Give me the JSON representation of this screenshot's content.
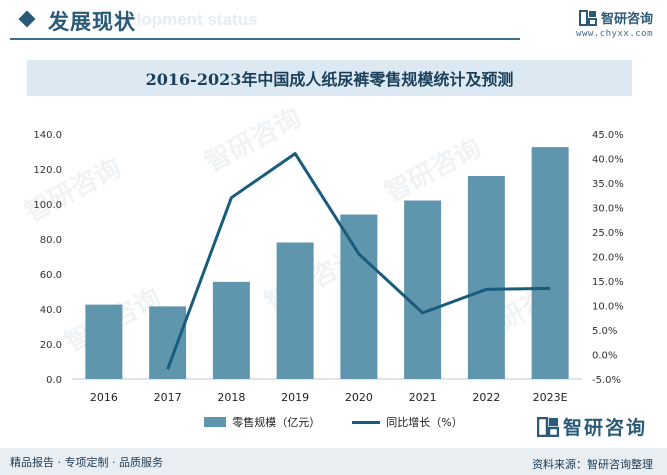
{
  "header": {
    "section_title": "发展现状",
    "section_ghost": "Development status",
    "brand_name": "智研咨询",
    "brand_url": "www.chyxx.com"
  },
  "watermark": "智研咨询",
  "footer": {
    "left_text": "精品报告 · 专项定制 · 品质服务",
    "source": "资料来源：智研咨询整理",
    "logo_name": "智研咨询"
  },
  "colors": {
    "bar": "#5f95ad",
    "line": "#1a5c7c",
    "accent": "#2b5a78"
  },
  "chart_data": {
    "type": "bar",
    "title": "2016-2023年中国成人纸尿裤零售规模统计及预测",
    "categories": [
      "2016",
      "2017",
      "2018",
      "2019",
      "2020",
      "2021",
      "2022",
      "2023E"
    ],
    "series": [
      {
        "name": "零售规模（亿元）",
        "type": "bar",
        "axis": "left",
        "values": [
          42.5,
          41.5,
          55.5,
          78.0,
          94.0,
          102.0,
          116.0,
          132.5
        ]
      },
      {
        "name": "同比增长（%）",
        "type": "line",
        "axis": "right",
        "values": [
          null,
          -3.0,
          32.0,
          41.0,
          20.5,
          8.5,
          13.3,
          13.5
        ]
      }
    ],
    "y_left": {
      "min": 0,
      "max": 140,
      "step": 20,
      "ticks": [
        "0.0",
        "20.0",
        "40.0",
        "60.0",
        "80.0",
        "100.0",
        "120.0",
        "140.0"
      ]
    },
    "y_right": {
      "min": -5,
      "max": 45,
      "step": 5,
      "ticks": [
        "-5.0%",
        "0.0%",
        "5.0%",
        "10.0%",
        "15.0%",
        "20.0%",
        "25.0%",
        "30.0%",
        "35.0%",
        "40.0%",
        "45.0%"
      ]
    },
    "grid": false,
    "legend_position": "bottom"
  }
}
